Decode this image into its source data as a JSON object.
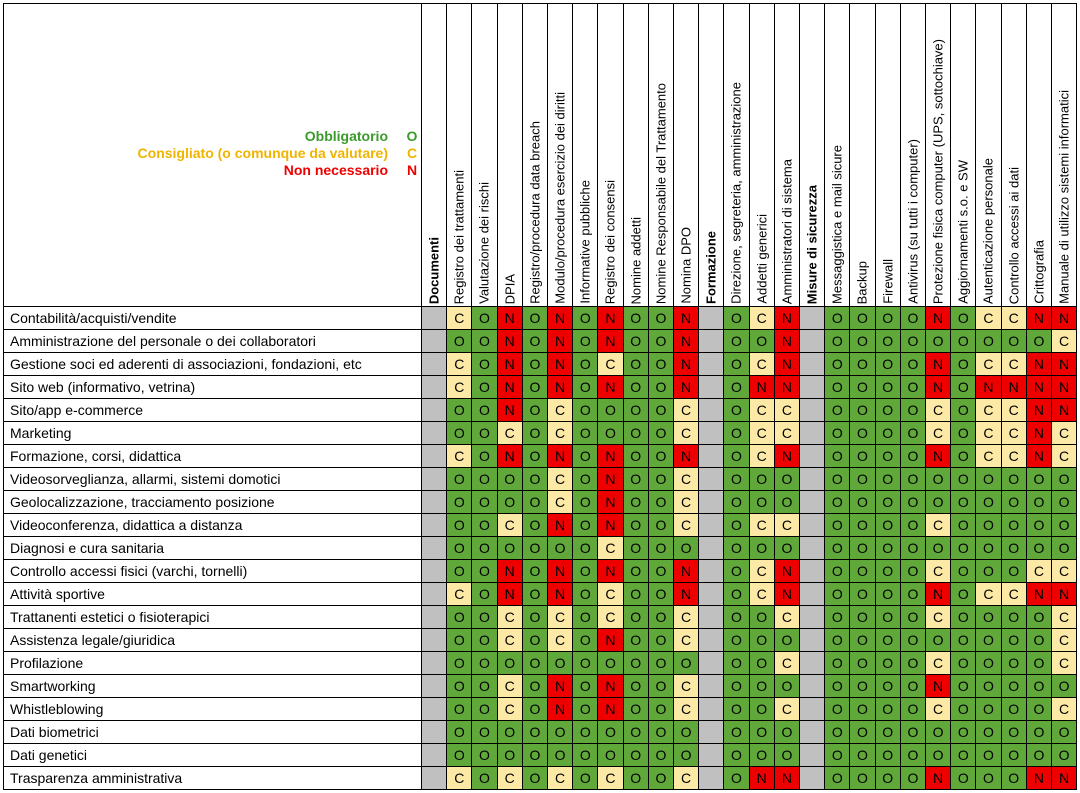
{
  "legend": [
    {
      "label": "Obbligatorio",
      "code": "O",
      "color": "#3a9b2a"
    },
    {
      "label": "Consigliato (o comunque da valutare)",
      "code": "C",
      "color": "#f0b400"
    },
    {
      "label": "Non necessario",
      "code": "N",
      "color": "#ee0000"
    }
  ],
  "colors": {
    "O": "#61a83b",
    "C": "#fde9a6",
    "N": "#ee0000",
    "section": "#c0c0c0",
    "grid": "#000000"
  },
  "columns": [
    {
      "label": "Documenti",
      "section": true
    },
    {
      "label": "Registro dei trattamenti"
    },
    {
      "label": "Valutazione dei rischi"
    },
    {
      "label": "DPIA"
    },
    {
      "label": "Registro/procedura data breach"
    },
    {
      "label": "Modulo/procedura esercizio dei diritti"
    },
    {
      "label": "Informative pubbliche"
    },
    {
      "label": "Registro dei consensi"
    },
    {
      "label": "Nomine addetti"
    },
    {
      "label": "Nomine Responsabile del Trattamento"
    },
    {
      "label": "Nomina DPO"
    },
    {
      "label": "Formazione",
      "section": true
    },
    {
      "label": "Direzione, segreteria, amministrazione"
    },
    {
      "label": "Addetti generici"
    },
    {
      "label": "Amministratori di sistema"
    },
    {
      "label": "Misure di sicurezza",
      "section": true
    },
    {
      "label": "Messaggistica e mail sicure"
    },
    {
      "label": "Backup"
    },
    {
      "label": "Firewall"
    },
    {
      "label": "Antivirus (su tutti i computer)"
    },
    {
      "label": "Protezione fisica computer (UPS, sottochiave)"
    },
    {
      "label": "Aggiornamenti s.o. e SW"
    },
    {
      "label": "Autenticazione personale"
    },
    {
      "label": "Controllo accessi ai dati"
    },
    {
      "label": "Crittografia"
    },
    {
      "label": "Manuale di utilizzo sistemi informatici"
    }
  ],
  "rows": [
    {
      "label": "Contabilità/acquisti/vendite",
      "values": [
        "C",
        "O",
        "N",
        "O",
        "N",
        "O",
        "N",
        "O",
        "O",
        "N",
        "O",
        "C",
        "N",
        "O",
        "O",
        "O",
        "O",
        "N",
        "O",
        "C",
        "C",
        "N",
        "N"
      ]
    },
    {
      "label": "Amministrazione del personale o dei collaboratori",
      "values": [
        "O",
        "O",
        "N",
        "O",
        "N",
        "O",
        "N",
        "O",
        "O",
        "N",
        "O",
        "O",
        "N",
        "O",
        "O",
        "O",
        "O",
        "O",
        "O",
        "O",
        "O",
        "O",
        "C"
      ]
    },
    {
      "label": "Gestione soci ed aderenti di associazioni, fondazioni, etc",
      "values": [
        "C",
        "O",
        "N",
        "O",
        "N",
        "O",
        "C",
        "O",
        "O",
        "N",
        "O",
        "C",
        "N",
        "O",
        "O",
        "O",
        "O",
        "N",
        "O",
        "C",
        "C",
        "N",
        "N"
      ]
    },
    {
      "label": "Sito web (informativo, vetrina)",
      "values": [
        "C",
        "O",
        "N",
        "O",
        "N",
        "O",
        "N",
        "O",
        "O",
        "N",
        "O",
        "N",
        "N",
        "O",
        "O",
        "O",
        "O",
        "N",
        "O",
        "N",
        "N",
        "N",
        "N"
      ]
    },
    {
      "label": "Sito/app e-commerce",
      "values": [
        "O",
        "O",
        "N",
        "O",
        "C",
        "O",
        "O",
        "O",
        "O",
        "C",
        "O",
        "C",
        "C",
        "O",
        "O",
        "O",
        "O",
        "C",
        "O",
        "C",
        "C",
        "N",
        "N"
      ]
    },
    {
      "label": "Marketing",
      "values": [
        "O",
        "O",
        "C",
        "O",
        "C",
        "O",
        "O",
        "O",
        "O",
        "C",
        "O",
        "C",
        "C",
        "O",
        "O",
        "O",
        "O",
        "C",
        "O",
        "C",
        "C",
        "N",
        "C"
      ]
    },
    {
      "label": "Formazione, corsi, didattica",
      "values": [
        "C",
        "O",
        "N",
        "O",
        "N",
        "O",
        "N",
        "O",
        "O",
        "N",
        "O",
        "C",
        "N",
        "O",
        "O",
        "O",
        "O",
        "N",
        "O",
        "C",
        "C",
        "N",
        "C"
      ]
    },
    {
      "label": "Videosorveglianza, allarmi, sistemi domotici",
      "values": [
        "O",
        "O",
        "O",
        "O",
        "C",
        "O",
        "N",
        "O",
        "O",
        "C",
        "O",
        "O",
        "O",
        "O",
        "O",
        "O",
        "O",
        "O",
        "O",
        "O",
        "O",
        "O",
        "O"
      ]
    },
    {
      "label": "Geolocalizzazione, tracciamento posizione",
      "values": [
        "O",
        "O",
        "O",
        "O",
        "C",
        "O",
        "N",
        "O",
        "O",
        "C",
        "O",
        "O",
        "O",
        "O",
        "O",
        "O",
        "O",
        "O",
        "O",
        "O",
        "O",
        "O",
        "O"
      ]
    },
    {
      "label": "Videoconferenza, didattica a distanza",
      "values": [
        "O",
        "O",
        "C",
        "O",
        "N",
        "O",
        "N",
        "O",
        "O",
        "C",
        "O",
        "C",
        "C",
        "O",
        "O",
        "O",
        "O",
        "C",
        "O",
        "O",
        "O",
        "O",
        "O"
      ]
    },
    {
      "label": "Diagnosi e cura sanitaria",
      "values": [
        "O",
        "O",
        "O",
        "O",
        "O",
        "O",
        "C",
        "O",
        "O",
        "O",
        "O",
        "O",
        "O",
        "O",
        "O",
        "O",
        "O",
        "O",
        "O",
        "O",
        "O",
        "O",
        "O"
      ]
    },
    {
      "label": "Controllo accessi fisici (varchi, tornelli)",
      "values": [
        "O",
        "O",
        "N",
        "O",
        "N",
        "O",
        "N",
        "O",
        "O",
        "N",
        "O",
        "C",
        "N",
        "O",
        "O",
        "O",
        "O",
        "C",
        "O",
        "O",
        "O",
        "C",
        "C"
      ]
    },
    {
      "label": "Attività sportive",
      "values": [
        "C",
        "O",
        "N",
        "O",
        "N",
        "O",
        "C",
        "O",
        "O",
        "N",
        "O",
        "C",
        "N",
        "O",
        "O",
        "O",
        "O",
        "N",
        "O",
        "C",
        "C",
        "N",
        "N"
      ]
    },
    {
      "label": "Trattanenti estetici o fisioterapici",
      "values": [
        "O",
        "O",
        "C",
        "O",
        "C",
        "O",
        "C",
        "O",
        "O",
        "C",
        "O",
        "O",
        "C",
        "O",
        "O",
        "O",
        "O",
        "C",
        "O",
        "O",
        "O",
        "O",
        "C"
      ]
    },
    {
      "label": "Assistenza legale/giuridica",
      "values": [
        "O",
        "O",
        "C",
        "O",
        "C",
        "O",
        "N",
        "O",
        "O",
        "C",
        "O",
        "O",
        "O",
        "O",
        "O",
        "O",
        "O",
        "O",
        "O",
        "O",
        "O",
        "O",
        "C"
      ]
    },
    {
      "label": "Profilazione",
      "values": [
        "O",
        "O",
        "O",
        "O",
        "O",
        "O",
        "O",
        "O",
        "O",
        "O",
        "O",
        "O",
        "C",
        "O",
        "O",
        "O",
        "O",
        "C",
        "O",
        "O",
        "O",
        "O",
        "C"
      ]
    },
    {
      "label": "Smartworking",
      "values": [
        "O",
        "O",
        "C",
        "O",
        "N",
        "O",
        "N",
        "O",
        "O",
        "C",
        "O",
        "O",
        "O",
        "O",
        "O",
        "O",
        "O",
        "N",
        "O",
        "O",
        "O",
        "O",
        "O"
      ]
    },
    {
      "label": "Whistleblowing",
      "values": [
        "O",
        "O",
        "C",
        "O",
        "N",
        "O",
        "N",
        "O",
        "O",
        "C",
        "O",
        "O",
        "C",
        "O",
        "O",
        "O",
        "O",
        "C",
        "O",
        "O",
        "O",
        "O",
        "C"
      ]
    },
    {
      "label": "Dati biometrici",
      "values": [
        "O",
        "O",
        "O",
        "O",
        "O",
        "O",
        "O",
        "O",
        "O",
        "O",
        "O",
        "O",
        "O",
        "O",
        "O",
        "O",
        "O",
        "O",
        "O",
        "O",
        "O",
        "O",
        "O"
      ]
    },
    {
      "label": "Dati genetici",
      "values": [
        "O",
        "O",
        "O",
        "O",
        "O",
        "O",
        "O",
        "O",
        "O",
        "O",
        "O",
        "O",
        "O",
        "O",
        "O",
        "O",
        "O",
        "O",
        "O",
        "O",
        "O",
        "O",
        "O"
      ]
    },
    {
      "label": "Trasparenza amministrativa",
      "values": [
        "C",
        "O",
        "C",
        "O",
        "C",
        "O",
        "C",
        "O",
        "O",
        "C",
        "O",
        "N",
        "N",
        "O",
        "O",
        "O",
        "O",
        "N",
        "O",
        "O",
        "O",
        "N",
        "N"
      ]
    }
  ]
}
